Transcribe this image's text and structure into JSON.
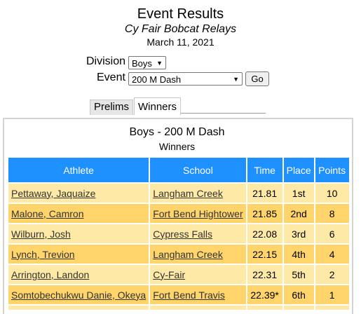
{
  "header": {
    "title": "Event Results",
    "meet": "Cy Fair Bobcat Relays",
    "date": "March 11, 2021"
  },
  "filters": {
    "division_label": "Division",
    "division_value": "Boys",
    "event_label": "Event",
    "event_value": "200 M Dash",
    "go_label": "Go"
  },
  "tabs": [
    {
      "label": "Prelims",
      "active": false
    },
    {
      "label": "Winners",
      "active": true
    }
  ],
  "results": {
    "subtitle": "Boys - 200 M Dash",
    "section": "Winners",
    "columns": [
      "Athlete",
      "School",
      "Time",
      "Place",
      "Points"
    ],
    "rows": [
      {
        "athlete": "Pettaway, Jaquaize",
        "school": "Langham Creek",
        "time": "21.81",
        "place": "1st",
        "points": "10"
      },
      {
        "athlete": "Malone, Camron",
        "school": "Fort Bend Hightower",
        "time": "21.85",
        "place": "2nd",
        "points": "8"
      },
      {
        "athlete": "Wilburn, Josh",
        "school": "Cypress Falls",
        "time": "22.08",
        "place": "3rd",
        "points": "6"
      },
      {
        "athlete": "Lynch, Trevion",
        "school": "Langham Creek",
        "time": "22.15",
        "place": "4th",
        "points": "4"
      },
      {
        "athlete": "Arrington, Landon",
        "school": "Cy-Fair",
        "time": "22.31",
        "place": "5th",
        "points": "2"
      },
      {
        "athlete": "Somtobechukwu Danie, Okeya",
        "school": "Fort Bend Travis",
        "time": "22.39*",
        "place": "6th",
        "points": "1"
      }
    ]
  },
  "colors": {
    "header_blue": "#1e90ff",
    "row_light": "#ffe9a6",
    "row_dark": "#ffd56b"
  }
}
